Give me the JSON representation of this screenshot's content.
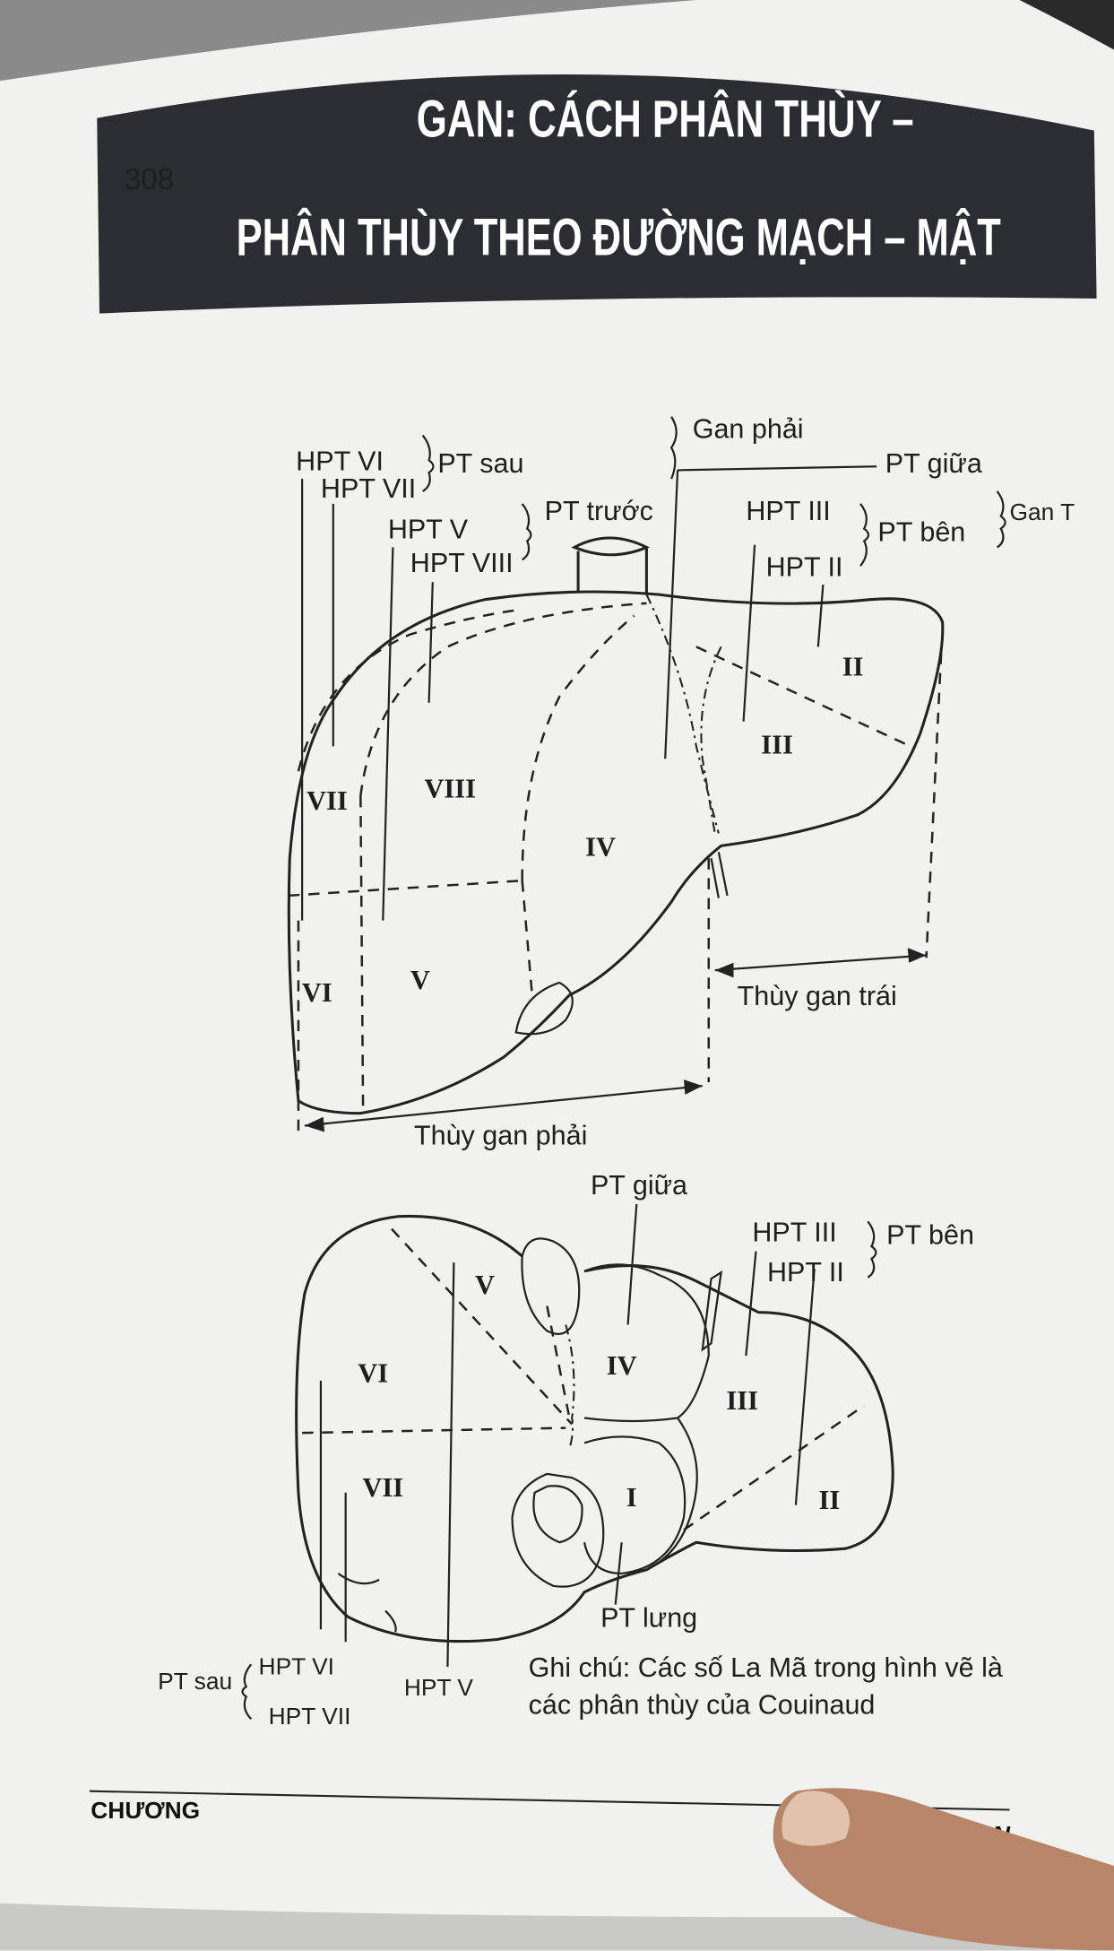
{
  "header": {
    "page_number": "308",
    "title_lines": [
      "GAN: CÁCH PHÂN THÙY –",
      "PHÂN THÙY THEO ĐƯỜNG MẠCH – MẬT"
    ]
  },
  "figure_top": {
    "labels": [
      "HPT VI",
      "HPT VII",
      "PT sau",
      "HPT V",
      "HPT VIII",
      "PT trước",
      "Gan phải",
      "PT giữa",
      "Gan T",
      "HPT III",
      "PT bên",
      "HPT II",
      "Thùy gan trái",
      "Thùy gan phải"
    ],
    "segments": [
      "II",
      "III",
      "VII",
      "VIII",
      "IV",
      "VI",
      "V"
    ]
  },
  "figure_bottom": {
    "labels": [
      "PT giữa",
      "HPT III",
      "PT bên",
      "HPT II",
      "PT lưng",
      "PT sau",
      "HPT VI",
      "HPT VII",
      "HPT V"
    ],
    "segments": [
      "V",
      "VI",
      "IV",
      "III",
      "VII",
      "I",
      "II"
    ],
    "note_lines": [
      "Ghi chú: Các số La Mã trong hình vẽ là",
      "các phân thùy của Couinaud"
    ]
  },
  "footer": {
    "left": "CHƯƠNG",
    "right": "GAN"
  }
}
